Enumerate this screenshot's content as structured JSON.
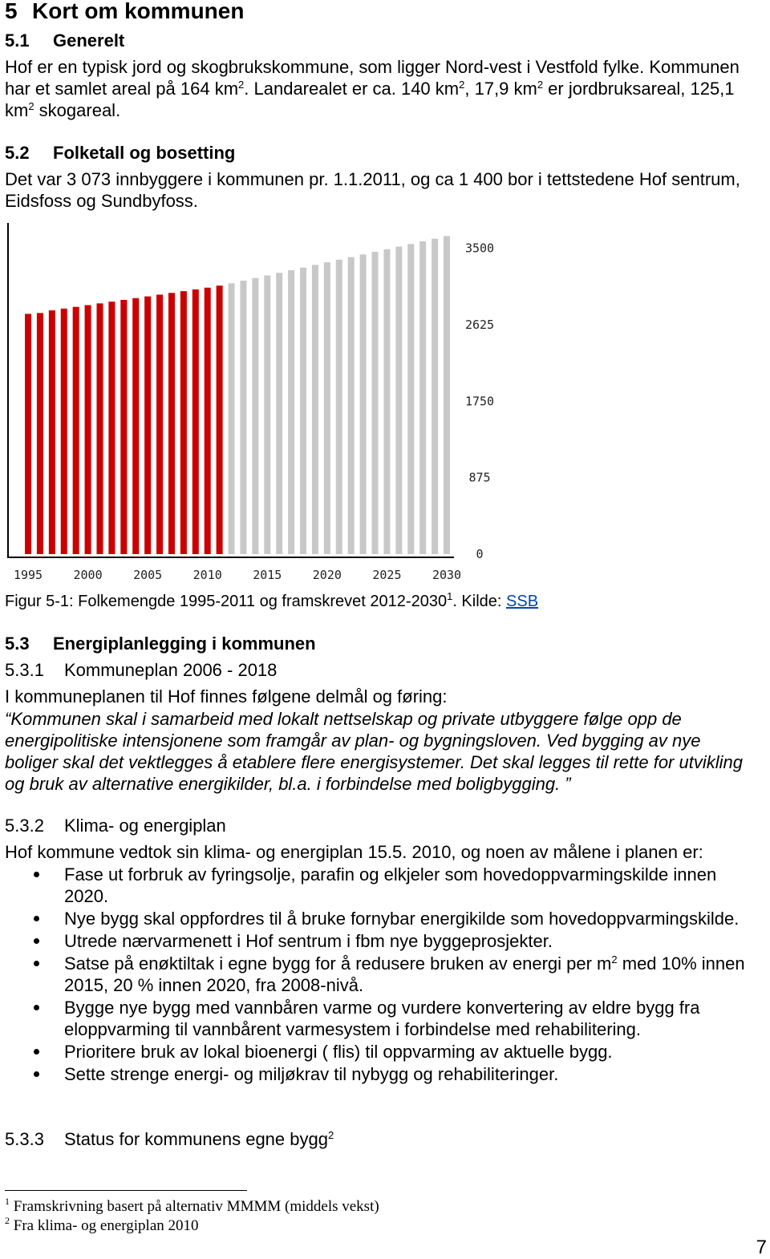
{
  "h1": {
    "number": "5",
    "title": "Kort om kommunen"
  },
  "s51": {
    "number": "5.1",
    "title": "Generelt",
    "text": [
      "Hof er en typisk jord og skogbrukskommune, som ligger Nord-vest i Vestfold fylke. Kommunen har et samlet areal på 164 km",
      "2",
      ". Landarealet er ca. 140 km",
      "2",
      ", 17,9 km",
      "2",
      " er jordbruksareal, 125,1 km",
      "2",
      " skogareal."
    ]
  },
  "s52": {
    "number": "5.2",
    "title": "Folketall og bosetting",
    "text": "Det var 3 073 innbyggere i kommunen pr. 1.1.2011, og ca 1 400 bor i tettstedene Hof sentrum, Eidsfoss og Sundbyfoss."
  },
  "chart_data": {
    "type": "bar",
    "categories": [
      1995,
      null,
      null,
      null,
      null,
      2000,
      null,
      null,
      null,
      null,
      2005,
      null,
      null,
      null,
      null,
      2010,
      null,
      null,
      null,
      null,
      2015,
      null,
      null,
      null,
      null,
      2020,
      null,
      null,
      null,
      null,
      2025,
      null,
      null,
      null,
      null,
      2030
    ],
    "series": [
      {
        "color": "#cc0000",
        "values": [
          2750,
          2760,
          2790,
          2810,
          2830,
          2850,
          2870,
          2890,
          2910,
          2930,
          2950,
          2970,
          2990,
          3010,
          3030,
          3050,
          3073,
          null,
          null,
          null,
          null,
          null,
          null,
          null,
          null,
          null,
          null,
          null,
          null,
          null,
          null,
          null,
          null,
          null,
          null,
          null
        ]
      },
      {
        "color": "#c8c8c8",
        "values": [
          null,
          null,
          null,
          null,
          null,
          null,
          null,
          null,
          null,
          null,
          null,
          null,
          null,
          null,
          null,
          null,
          null,
          3100,
          3130,
          3160,
          3190,
          3220,
          3250,
          3280,
          3310,
          3340,
          3370,
          3400,
          3430,
          3460,
          3490,
          3520,
          3550,
          3580,
          3610,
          3640
        ]
      }
    ],
    "ylim": [
      0,
      3800
    ],
    "yticks": [
      0,
      875,
      1750,
      2625,
      3500
    ],
    "grid": false
  },
  "caption": {
    "text": [
      "Figur 5-1: Folkemengde 1995-2011 og framskrevet 2012-2030",
      "1",
      ". Kilde: "
    ],
    "link": "SSB"
  },
  "s53": {
    "number": "5.3",
    "title": "Energiplanlegging i kommunen"
  },
  "s531": {
    "number": "5.3.1",
    "title": "Kommuneplan 2006 - 2018",
    "text": "I kommuneplanen til Hof finnes følgene delmål og føring:",
    "quote": "“Kommunen skal i samarbeid med lokalt nettselskap og private utbyggere følge opp de energipolitiske intensjonene som framgår av plan- og bygningsloven. Ved bygging av nye boliger skal det vektlegges å etablere flere energisystemer. Det skal legges til rette for utvikling og bruk av alternative energikilder, bl.a. i forbindelse med boligbygging. ”"
  },
  "s532": {
    "number": "5.3.2",
    "title": "Klima- og energiplan",
    "text": "Hof kommune vedtok sin klima- og energiplan 15.5. 2010, og noen av målene i planen er:",
    "bullets": [
      [
        "Fase ut forbruk av fyringsolje, parafin og elkjeler som hovedoppvarmingskilde innen 2020."
      ],
      [
        "Nye bygg skal oppfordres til å bruke fornybar energikilde som hovedoppvarmingskilde."
      ],
      [
        "Utrede nærvarmenett i Hof sentrum i fbm nye byggeprosjekter."
      ],
      [
        "Satse på enøktiltak i egne bygg for å redusere bruken av energi per m",
        "2",
        " med 10% innen 2015, 20 % innen 2020, fra 2008-nivå."
      ],
      [
        "Bygge nye bygg med vannbåren varme og vurdere konvertering av eldre bygg fra eloppvarming til vannbårent varmesystem i forbindelse med rehabilitering."
      ],
      [
        "Prioritere bruk av lokal bioenergi ( flis) til oppvarming av aktuelle bygg."
      ],
      [
        "Sette strenge energi- og miljøkrav til nybygg og rehabiliteringer."
      ]
    ]
  },
  "s533": {
    "number": "5.3.3",
    "title": [
      "Status for kommunens egne bygg",
      "2"
    ]
  },
  "footnotes": [
    {
      "mark": "1",
      "text": "Framskrivning basert på alternativ MMMM (middels vekst)"
    },
    {
      "mark": "2",
      "text": "Fra klima- og energiplan 2010"
    }
  ],
  "page_number": "7"
}
